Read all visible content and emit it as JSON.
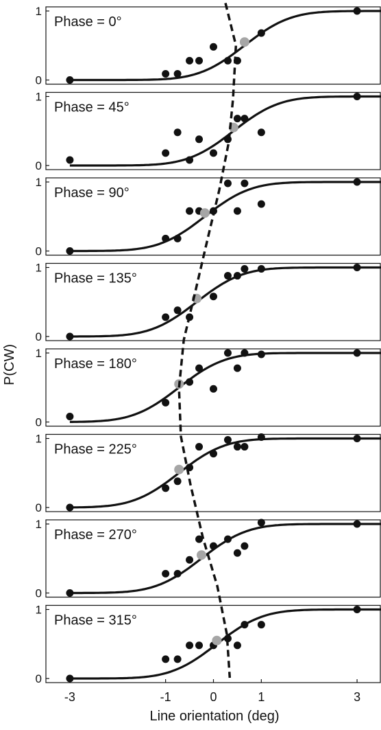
{
  "chart_data": {
    "type": "scatter",
    "xlabel": "Line orientation (deg)",
    "ylabel": "P(CW)",
    "xlim": [
      -3.5,
      3.5
    ],
    "ylim": [
      0,
      1
    ],
    "xticks": [
      -3,
      -1,
      0,
      1,
      3
    ],
    "xtick_labels": [
      "-3",
      "-1",
      "0",
      "1",
      "3"
    ],
    "yticks": [
      0,
      1
    ],
    "ytick_labels": [
      "0",
      "1"
    ],
    "colors": {
      "data_points": "#111111",
      "pse_marker": "#a6a6a6",
      "curve": "#111111"
    },
    "dashed_line": {
      "x": [
        0.25,
        0.47,
        0.41,
        0.32,
        0.12,
        -0.12,
        -0.38,
        -0.62,
        -0.72,
        -0.68,
        -0.48,
        -0.22,
        0.08,
        0.28,
        0.34
      ],
      "y_index": [
        -0.08,
        0.8,
        1.9,
        2.8,
        3.8,
        4.8,
        5.9,
        6.9,
        7.9,
        8.9,
        9.9,
        11.0,
        12.0,
        13.0,
        13.9
      ]
    },
    "panels": [
      {
        "label": "Phase = 0°",
        "points": {
          "x": [
            -3,
            -1,
            -0.75,
            -0.5,
            -0.3,
            0,
            0.3,
            0.5,
            1,
            3
          ],
          "y": [
            0,
            0.09,
            0.09,
            0.28,
            0.28,
            0.48,
            0.28,
            0.28,
            0.68,
            1
          ]
        },
        "pse": {
          "x": 0.65,
          "y": 0.55
        },
        "curve": {
          "mu": 0.65,
          "sigma": 0.75
        }
      },
      {
        "label": "Phase = 45°",
        "points": {
          "x": [
            -3,
            -1,
            -0.75,
            -0.5,
            -0.3,
            0,
            0.3,
            0.5,
            0.65,
            1,
            3
          ],
          "y": [
            0.08,
            0.18,
            0.48,
            0.08,
            0.38,
            0.18,
            0.38,
            0.68,
            0.68,
            0.48,
            1
          ]
        },
        "pse": {
          "x": 0.42,
          "y": 0.55
        },
        "curve": {
          "mu": 0.42,
          "sigma": 0.75
        }
      },
      {
        "label": "Phase = 90°",
        "points": {
          "x": [
            -3,
            -1,
            -0.75,
            -0.5,
            -0.3,
            0,
            0.3,
            0.5,
            0.65,
            1,
            3
          ],
          "y": [
            0,
            0.18,
            0.18,
            0.58,
            0.58,
            0.58,
            0.98,
            0.58,
            0.98,
            0.68,
            1
          ]
        },
        "pse": {
          "x": -0.18,
          "y": 0.55
        },
        "curve": {
          "mu": -0.18,
          "sigma": 0.75
        }
      },
      {
        "label": "Phase = 135°",
        "points": {
          "x": [
            -3,
            -1,
            -0.75,
            -0.5,
            0,
            0.3,
            0.5,
            0.65,
            1,
            3
          ],
          "y": [
            0,
            0.28,
            0.38,
            0.28,
            0.58,
            0.88,
            0.88,
            0.98,
            0.98,
            1
          ]
        },
        "pse": {
          "x": -0.35,
          "y": 0.55
        },
        "curve": {
          "mu": -0.35,
          "sigma": 0.75
        }
      },
      {
        "label": "Phase = 180°",
        "points": {
          "x": [
            -3,
            -1,
            -0.5,
            -0.3,
            0,
            0.3,
            0.5,
            0.65,
            1,
            3
          ],
          "y": [
            0.08,
            0.28,
            0.58,
            0.78,
            0.48,
            1,
            0.78,
            1,
            0.98,
            1
          ]
        },
        "pse": {
          "x": -0.72,
          "y": 0.55
        },
        "curve": {
          "mu": -0.72,
          "sigma": 0.75
        }
      },
      {
        "label": "Phase = 225°",
        "points": {
          "x": [
            -3,
            -1,
            -0.75,
            -0.5,
            -0.3,
            0,
            0.3,
            0.5,
            0.65,
            1,
            3
          ],
          "y": [
            0,
            0.28,
            0.38,
            0.58,
            0.88,
            0.78,
            0.98,
            0.88,
            0.88,
            1.02,
            1
          ]
        },
        "pse": {
          "x": -0.72,
          "y": 0.55
        },
        "curve": {
          "mu": -0.72,
          "sigma": 0.75
        }
      },
      {
        "label": "Phase = 270°",
        "points": {
          "x": [
            -3,
            -1,
            -0.75,
            -0.5,
            -0.3,
            0,
            0.3,
            0.5,
            0.65,
            1,
            3
          ],
          "y": [
            0,
            0.28,
            0.28,
            0.48,
            0.78,
            0.68,
            0.78,
            0.58,
            0.68,
            1.02,
            1
          ]
        },
        "pse": {
          "x": -0.25,
          "y": 0.55
        },
        "curve": {
          "mu": -0.25,
          "sigma": 0.75
        }
      },
      {
        "label": "Phase = 315°",
        "points": {
          "x": [
            -3,
            -1,
            -0.75,
            -0.5,
            -0.3,
            0,
            0.3,
            0.5,
            0.65,
            1,
            3
          ],
          "y": [
            0,
            0.28,
            0.28,
            0.48,
            0.48,
            0.48,
            0.58,
            0.48,
            0.78,
            0.78,
            1
          ]
        },
        "pse": {
          "x": 0.07,
          "y": 0.55
        },
        "curve": {
          "mu": 0.07,
          "sigma": 0.75
        }
      }
    ]
  }
}
